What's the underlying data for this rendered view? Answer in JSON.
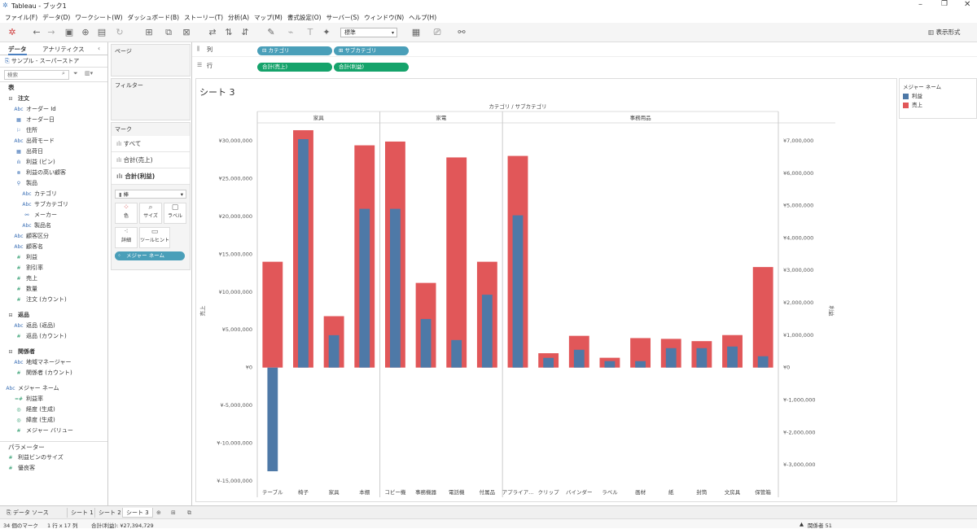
{
  "window": {
    "title": "Tableau - ブック1"
  },
  "menu": [
    "ファイル(F)",
    "データ(D)",
    "ワークシート(W)",
    "ダッシュボード(B)",
    "ストーリー(T)",
    "分析(A)",
    "マップ(M)",
    "書式設定(O)",
    "サーバー(S)",
    "ウィンドウ(N)",
    "ヘルプ(H)"
  ],
  "toolbar": {
    "fit_value": "標準",
    "show_me": "表示形式"
  },
  "data_pane": {
    "tab_data": "データ",
    "tab_analytics": "アナリティクス",
    "datasource": "サンプル - スーパーストア",
    "search_placeholder": "検索",
    "tables_header": "表",
    "fields": [
      {
        "label": "注文",
        "type": "folder",
        "indent": 0,
        "bold": true
      },
      {
        "label": "オーダー Id",
        "type": "Abc",
        "indent": 1
      },
      {
        "label": "オーダー日",
        "type": "date",
        "indent": 1
      },
      {
        "label": "住所",
        "type": "geo",
        "indent": 1
      },
      {
        "label": "出荷モード",
        "type": "Abc",
        "indent": 1
      },
      {
        "label": "出荷日",
        "type": "date",
        "indent": 1
      },
      {
        "label": "利益 (ビン)",
        "type": "bin",
        "indent": 1
      },
      {
        "label": "利益の高い顧客",
        "type": "set",
        "indent": 1
      },
      {
        "label": "製品",
        "type": "hier",
        "indent": 1
      },
      {
        "label": "カテゴリ",
        "type": "Abc",
        "indent": 2
      },
      {
        "label": "サブカテゴリ",
        "type": "Abc",
        "indent": 2
      },
      {
        "label": "メーカー",
        "type": "link",
        "indent": 2
      },
      {
        "label": "製品名",
        "type": "Abc",
        "indent": 2
      },
      {
        "label": "顧客区分",
        "type": "Abc",
        "indent": 1
      },
      {
        "label": "顧客名",
        "type": "Abc",
        "indent": 1
      },
      {
        "label": "利益",
        "type": "#",
        "indent": 1
      },
      {
        "label": "割引率",
        "type": "#",
        "indent": 1
      },
      {
        "label": "売上",
        "type": "#",
        "indent": 1
      },
      {
        "label": "数量",
        "type": "#",
        "indent": 1
      },
      {
        "label": "注文 (カウント)",
        "type": "#",
        "indent": 1
      },
      {
        "label": "",
        "type": "gap",
        "indent": 0
      },
      {
        "label": "返品",
        "type": "folder",
        "indent": 0,
        "bold": true
      },
      {
        "label": "返品 (返品)",
        "type": "Abc",
        "indent": 1
      },
      {
        "label": "返品 (カウント)",
        "type": "#",
        "indent": 1
      },
      {
        "label": "",
        "type": "gap",
        "indent": 0
      },
      {
        "label": "関係者",
        "type": "folder",
        "indent": 0,
        "bold": true
      },
      {
        "label": "地域マネージャー",
        "type": "Abc",
        "indent": 1
      },
      {
        "label": "関係者 (カウント)",
        "type": "#",
        "indent": 1
      },
      {
        "label": "",
        "type": "gap",
        "indent": 0
      },
      {
        "label": "メジャー ネーム",
        "type": "Abc",
        "indent": 0
      },
      {
        "label": "利益率",
        "type": "=#",
        "indent": 1
      },
      {
        "label": "経度 (生成)",
        "type": "globe",
        "indent": 1
      },
      {
        "label": "緯度 (生成)",
        "type": "globe",
        "indent": 1
      },
      {
        "label": "メジャー バリュー",
        "type": "#",
        "indent": 1
      }
    ],
    "params_header": "パラメーター",
    "params": [
      "利益ビンのサイズ",
      "優良客"
    ]
  },
  "cards": {
    "pages": "ページ",
    "filters": "フィルター",
    "marks": "マーク",
    "marks_rows": [
      "すべて",
      "合計(売上)",
      "合計(利益)"
    ],
    "mark_type": "棒",
    "buttons": [
      "色",
      "サイズ",
      "ラベル",
      "詳細",
      "ツールヒント"
    ],
    "measure_pill": "メジャー ネーム"
  },
  "shelves": {
    "columns_label": "列",
    "rows_label": "行",
    "columns": [
      "カテゴリ",
      "サブカテゴリ"
    ],
    "rows": [
      "合計(売上)",
      "合計(利益)"
    ]
  },
  "sheet": {
    "title": "シート 3"
  },
  "chart_data": {
    "type": "bar",
    "title": "シート 3",
    "header": "カテゴリ / サブカテゴリ",
    "groups": [
      {
        "name": "家具",
        "categories": [
          "テーブル",
          "椅子",
          "家具",
          "本棚"
        ]
      },
      {
        "name": "家電",
        "categories": [
          "コピー機",
          "事務機器",
          "電話機",
          "付属品"
        ]
      },
      {
        "name": "事務用品",
        "categories": [
          "アプライア...",
          "クリップ",
          "バインダー",
          "ラベル",
          "画材",
          "紙",
          "封筒",
          "文房具",
          "保管箱"
        ]
      }
    ],
    "series": [
      {
        "name": "売上",
        "color": "#e15759",
        "axis": "left",
        "values": [
          14000000,
          31400000,
          6800000,
          29400000,
          29900000,
          11200000,
          27800000,
          14000000,
          28000000,
          1900000,
          4200000,
          1300000,
          3900000,
          3800000,
          3500000,
          4300000,
          13300000
        ]
      },
      {
        "name": "利益",
        "color": "#4e79a7",
        "axis": "right",
        "values": [
          -3200000,
          7050000,
          1000000,
          4900000,
          4900000,
          1500000,
          850000,
          2250000,
          4700000,
          300000,
          550000,
          200000,
          200000,
          600000,
          600000,
          650000,
          350000
        ]
      }
    ],
    "left_axis": {
      "label": "売上",
      "ticks": [
        "¥30,000,000",
        "¥25,000,000",
        "¥20,000,000",
        "¥15,000,000",
        "¥10,000,000",
        "¥5,000,000",
        "¥0",
        "¥-5,000,000",
        "¥-10,000,000",
        "¥-15,000,000"
      ],
      "range": [
        -15000000,
        30000000
      ]
    },
    "right_axis": {
      "label": "利益",
      "ticks": [
        "¥7,000,000",
        "¥6,000,000",
        "¥5,000,000",
        "¥4,000,000",
        "¥3,000,000",
        "¥2,000,000",
        "¥1,000,000",
        "¥0",
        "¥-1,000,000",
        "¥-2,000,000",
        "¥-3,000,000"
      ],
      "range": [
        -3500000,
        7000000
      ]
    }
  },
  "legend": {
    "title": "メジャー ネーム",
    "items": [
      {
        "label": "利益",
        "color": "#4e79a7"
      },
      {
        "label": "売上",
        "color": "#e15759"
      }
    ]
  },
  "bottom_tabs": {
    "datasource": "データ ソース",
    "sheets": [
      "シート 1",
      "シート 2",
      "シート 3"
    ]
  },
  "status": {
    "marks": "34 個のマーク",
    "rowscols": "1 行 x 17 列",
    "sum": "合計(利益): ¥27,394,729",
    "user": "関係者 51"
  }
}
